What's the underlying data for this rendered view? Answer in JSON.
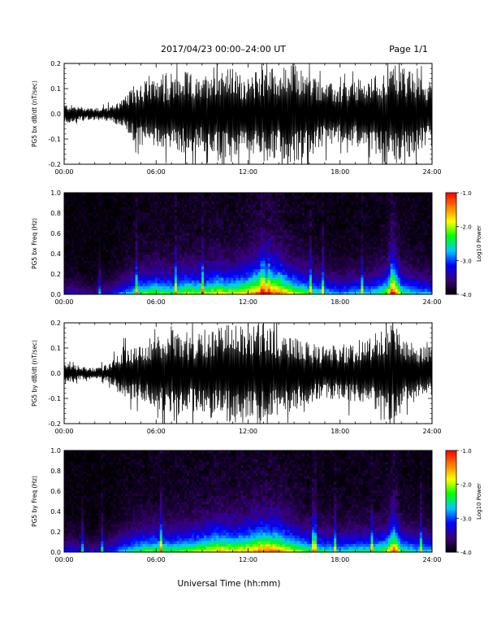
{
  "header": {
    "title": "2017/04/23  00:00–24:00 UT",
    "page": "Page 1/1"
  },
  "x_axis_title": "Universal Time (hh:mm)",
  "colors": {
    "trace": "#000000",
    "colormap": [
      "#000000",
      "#3a007a",
      "#0000ff",
      "#00c8ff",
      "#00ff00",
      "#ffff00",
      "#ff8000",
      "#ff0000"
    ]
  },
  "chart_data": [
    {
      "type": "line",
      "ylabel": "PG5 bx dB/dt (nT/sec)",
      "xlim": [
        0,
        24
      ],
      "ylim": [
        -0.2,
        0.2
      ],
      "x_ticks": [
        "00:00",
        "06:00",
        "12:00",
        "18:00",
        "24:00"
      ],
      "y_ticks": [
        "0.2",
        "0.1",
        "0.0",
        "-0.1",
        "-0.2"
      ],
      "envelope": {
        "hours": [
          0,
          1,
          2,
          3,
          4,
          5,
          6,
          7,
          8,
          9,
          9.5,
          10,
          11,
          12,
          13,
          14,
          15,
          16,
          17,
          18,
          19,
          20,
          20.5,
          21,
          21.5,
          22,
          23,
          24
        ],
        "amplitude": [
          0.04,
          0.03,
          0.025,
          0.03,
          0.07,
          0.14,
          0.13,
          0.14,
          0.17,
          0.13,
          0.2,
          0.2,
          0.18,
          0.14,
          0.2,
          0.18,
          0.2,
          0.16,
          0.13,
          0.11,
          0.13,
          0.14,
          0.17,
          0.16,
          0.2,
          0.2,
          0.15,
          0.13
        ]
      }
    },
    {
      "type": "heatmap",
      "ylabel": "PG5 bx Freq (Hz)",
      "xlim": [
        0,
        24
      ],
      "ylim": [
        0,
        1.0
      ],
      "x_ticks": [
        "00:00",
        "06:00",
        "12:00",
        "18:00",
        "24:00"
      ],
      "y_ticks": [
        "1.0",
        "0.8",
        "0.6",
        "0.4",
        "0.2",
        "0.0"
      ],
      "colorbar": {
        "label": "Log10 Power",
        "range": [
          -4.0,
          -1.0
        ],
        "ticks": [
          "-1.0",
          "-2.0",
          "-3.0",
          "-4.0"
        ]
      },
      "activity": {
        "hours": [
          0,
          1,
          2,
          3,
          4,
          5,
          6,
          7,
          8,
          9,
          10,
          11,
          12,
          13,
          14,
          15,
          16,
          17,
          18,
          19,
          20,
          21,
          21.5,
          22,
          23,
          24
        ],
        "level": [
          0.25,
          0.2,
          0.15,
          0.25,
          0.4,
          0.55,
          0.6,
          0.55,
          0.65,
          0.6,
          0.7,
          0.65,
          0.75,
          0.9,
          0.85,
          0.65,
          0.55,
          0.45,
          0.4,
          0.45,
          0.45,
          0.6,
          0.95,
          0.55,
          0.45,
          0.4
        ]
      }
    },
    {
      "type": "line",
      "ylabel": "PG5 by dB/dt (nT/sec)",
      "xlim": [
        0,
        24
      ],
      "ylim": [
        -0.2,
        0.2
      ],
      "x_ticks": [
        "00:00",
        "06:00",
        "12:00",
        "18:00",
        "24:00"
      ],
      "y_ticks": [
        "0.2",
        "0.1",
        "0.0",
        "-0.1",
        "-0.2"
      ],
      "envelope": {
        "hours": [
          0,
          1,
          2,
          3,
          4,
          5,
          6,
          7,
          8,
          9,
          10,
          11,
          12,
          13,
          14,
          15,
          16,
          17,
          18,
          19,
          20,
          21,
          21.5,
          22,
          23,
          24
        ],
        "amplitude": [
          0.04,
          0.03,
          0.02,
          0.04,
          0.1,
          0.11,
          0.13,
          0.2,
          0.14,
          0.17,
          0.19,
          0.2,
          0.2,
          0.2,
          0.16,
          0.15,
          0.12,
          0.11,
          0.11,
          0.12,
          0.14,
          0.2,
          0.2,
          0.15,
          0.11,
          0.1
        ]
      }
    },
    {
      "type": "heatmap",
      "ylabel": "PG5 by Freq (Hz)",
      "xlim": [
        0,
        24
      ],
      "ylim": [
        0,
        1.0
      ],
      "x_ticks": [
        "00:00",
        "06:00",
        "12:00",
        "18:00",
        "24:00"
      ],
      "y_ticks": [
        "1.0",
        "0.8",
        "0.6",
        "0.4",
        "0.2",
        "0.0"
      ],
      "colorbar": {
        "label": "Log10 Power",
        "range": [
          -4.0,
          -1.0
        ],
        "ticks": [
          "-1.0",
          "-2.0",
          "-3.0",
          "-4.0"
        ]
      },
      "activity": {
        "hours": [
          0,
          1,
          2,
          3,
          4,
          5,
          6,
          7,
          8,
          9,
          10,
          11,
          12,
          13,
          14,
          15,
          16,
          17,
          18,
          19,
          20,
          21,
          21.5,
          22,
          23,
          24
        ],
        "level": [
          0.3,
          0.25,
          0.2,
          0.3,
          0.45,
          0.55,
          0.6,
          0.55,
          0.6,
          0.65,
          0.75,
          0.7,
          0.75,
          0.85,
          0.8,
          0.65,
          0.55,
          0.5,
          0.45,
          0.5,
          0.5,
          0.6,
          0.9,
          0.55,
          0.45,
          0.45
        ]
      }
    }
  ]
}
